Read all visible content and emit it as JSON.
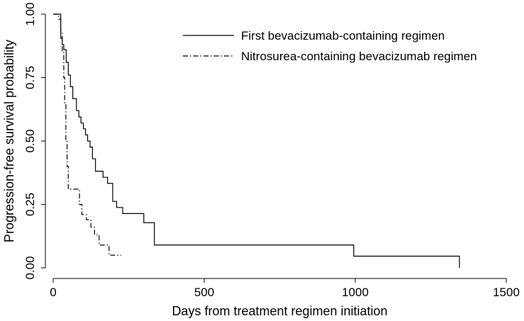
{
  "chart_data": {
    "type": "line",
    "step": true,
    "xlabel": "Days from treatment regimen initiation",
    "ylabel": "Progression-free survival probability",
    "xlim": [
      0,
      1500
    ],
    "ylim": [
      0,
      1
    ],
    "x_ticks": [
      {
        "value": 0,
        "label": "0"
      },
      {
        "value": 500,
        "label": "500"
      },
      {
        "value": 1000,
        "label": "1000"
      },
      {
        "value": 1500,
        "label": "1500"
      }
    ],
    "y_ticks": [
      {
        "value": 0,
        "label": "0.00"
      },
      {
        "value": 0.25,
        "label": "0.25"
      },
      {
        "value": 0.5,
        "label": "0.50"
      },
      {
        "value": 0.75,
        "label": "0.75"
      },
      {
        "value": 1,
        "label": "1.00"
      }
    ],
    "grid": false,
    "legend_position": "top-right",
    "series": [
      {
        "name": "First bevacizumab-containing regimen",
        "line_style": "solid",
        "color": "#000000",
        "x": [
          0,
          25,
          30,
          35,
          43,
          50,
          57,
          65,
          77,
          85,
          92,
          100,
          107,
          114,
          122,
          130,
          140,
          150,
          165,
          180,
          197,
          210,
          230,
          300,
          320,
          335,
          995,
          1345
        ],
        "y": [
          1.0,
          0.905,
          0.88,
          0.86,
          0.81,
          0.76,
          0.714,
          0.667,
          0.62,
          0.595,
          0.571,
          0.548,
          0.524,
          0.5,
          0.476,
          0.43,
          0.381,
          0.381,
          0.357,
          0.333,
          0.262,
          0.238,
          0.214,
          0.178,
          0.178,
          0.09,
          0.046,
          0.0
        ]
      },
      {
        "name": "Nitrosurea-containing bevacizumab regimen",
        "line_style": "dash-dot",
        "color": "#000000",
        "x": [
          0,
          18,
          25,
          30,
          35,
          38,
          42,
          46,
          50,
          80,
          87,
          95,
          110,
          125,
          137,
          152,
          175,
          185,
          225
        ],
        "y": [
          1.0,
          0.98,
          0.93,
          0.85,
          0.75,
          0.65,
          0.5,
          0.4,
          0.31,
          0.31,
          0.25,
          0.21,
          0.19,
          0.16,
          0.13,
          0.09,
          0.09,
          0.05,
          0.05
        ]
      }
    ]
  }
}
